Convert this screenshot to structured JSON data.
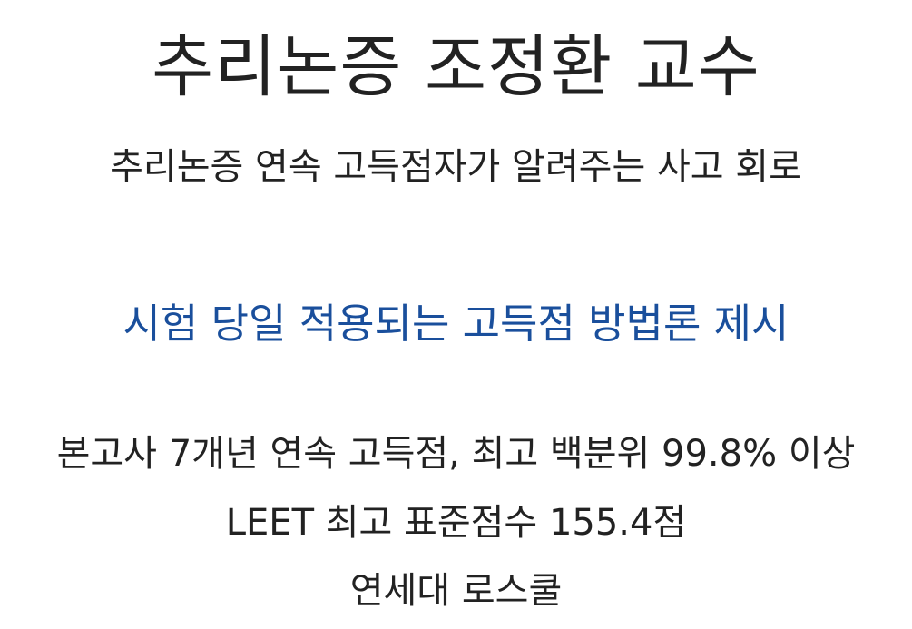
{
  "title": "추리논증 조정환 교수",
  "subtitle": "추리논증 연속 고득점자가 알려주는 사고 회로",
  "highlight": "시험 당일 적용되는 고득점 방법론 제시",
  "credentials": [
    "본고사 7개년 연속 고득점, 최고 백분위 99.8% 이상",
    "LEET 최고 표준점수 155.4점",
    "연세대 로스쿨"
  ],
  "colors": {
    "text": "#222222",
    "highlight": "#1a4f9c",
    "background": "#ffffff"
  }
}
